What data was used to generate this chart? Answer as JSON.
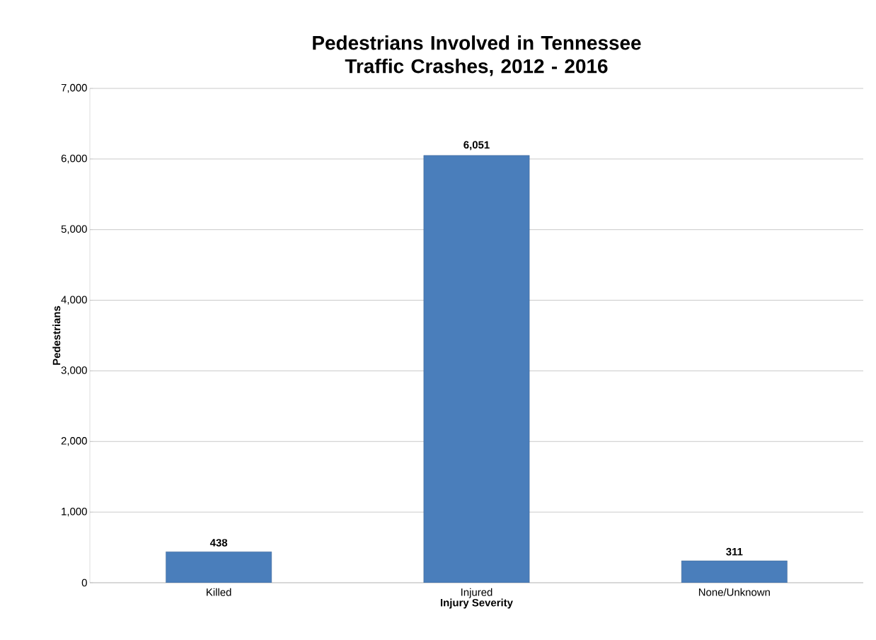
{
  "chart_data": {
    "type": "bar",
    "title": "Pedestrians Involved in Tennessee Traffic Crashes, 2012 - 2016",
    "xlabel": "Injury Severity",
    "ylabel": "Pedestrians",
    "categories": [
      "Killed",
      "Injured",
      "None/Unknown"
    ],
    "values": [
      438,
      6051,
      311
    ],
    "value_labels": [
      "438",
      "6,051",
      "311"
    ],
    "color": "#4a7ebb",
    "ylim": [
      0,
      7000
    ],
    "yticks": [
      0,
      {
        "value": 1000,
        "label": "1,000"
      },
      {
        "value": 2000,
        "label": "2,000"
      },
      {
        "value": 3000,
        "label": "3,000"
      },
      {
        "value": 4000,
        "label": "4,000"
      },
      {
        "value": 5000,
        "label": "5,000"
      },
      {
        "value": 6000,
        "label": "6,000"
      },
      {
        "value": 7000,
        "label": "7,000"
      }
    ],
    "grid": "y"
  }
}
